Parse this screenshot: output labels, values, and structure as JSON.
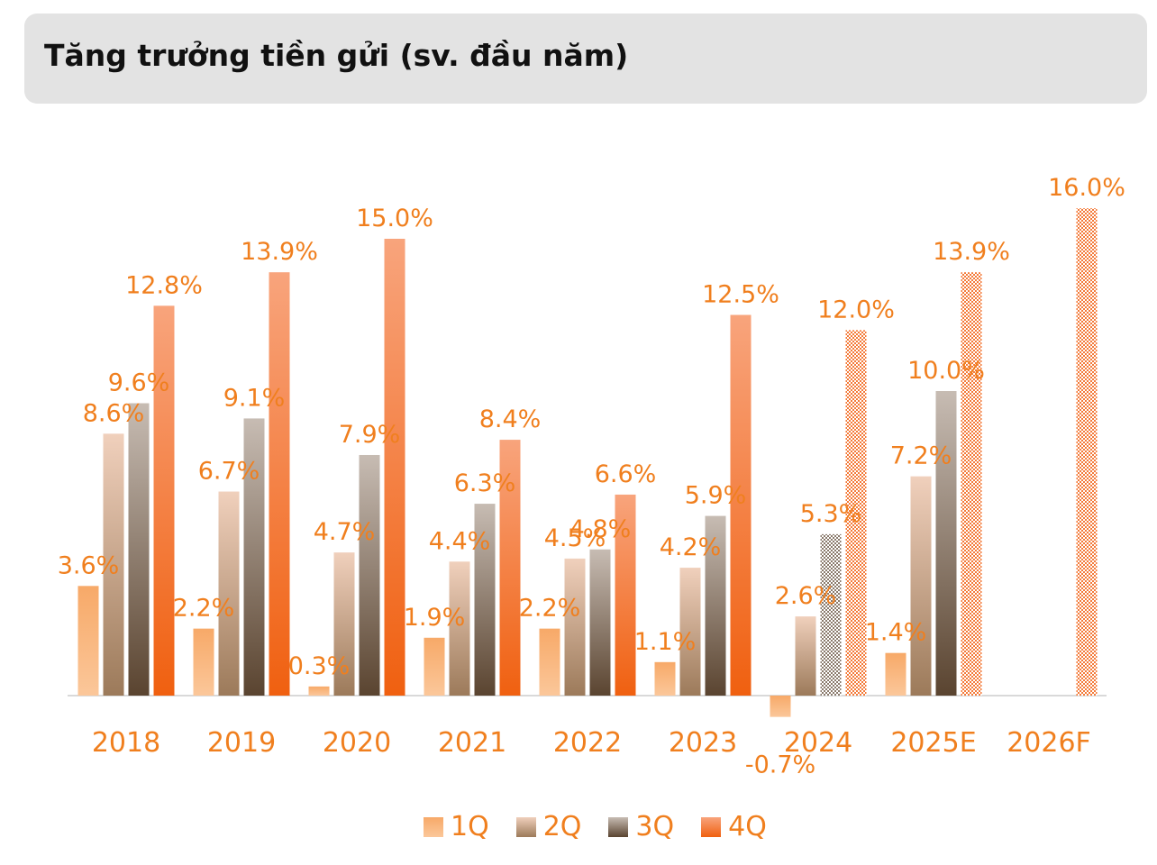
{
  "header": {
    "title": "Tăng trưởng tiền gửi (sv. đầu năm)"
  },
  "colors": {
    "accent": "#f07f1e",
    "q1": "#f4a05a",
    "q2": "#c9a283",
    "q3": "#6b5540",
    "q4": "#f47a38",
    "axis": "#d9d9d9"
  },
  "chart_data": {
    "type": "bar",
    "title": "Tăng trưởng tiền gửi (sv. đầu năm)",
    "categories": [
      "2018",
      "2019",
      "2020",
      "2021",
      "2022",
      "2023",
      "2024",
      "2025E",
      "2026F"
    ],
    "series": [
      {
        "name": "1Q",
        "values": [
          3.6,
          2.2,
          0.3,
          1.9,
          2.2,
          1.1,
          -0.7,
          1.4,
          null
        ],
        "labels": [
          "3.6%",
          "2.2%",
          "0.3%",
          "1.9%",
          "2.2%",
          "1.1%",
          "-0.7%",
          "1.4%",
          null
        ]
      },
      {
        "name": "2Q",
        "values": [
          8.6,
          6.7,
          4.7,
          4.4,
          4.5,
          4.2,
          2.6,
          7.2,
          null
        ],
        "labels": [
          "8.6%",
          "6.7%",
          "4.7%",
          "4.4%",
          "4.5%",
          "4.2%",
          "2.6%",
          "7.2%",
          null
        ]
      },
      {
        "name": "3Q",
        "values": [
          9.6,
          9.1,
          7.9,
          6.3,
          4.8,
          5.9,
          5.3,
          10.0,
          null
        ],
        "labels": [
          "9.6%",
          "9.1%",
          "7.9%",
          "6.3%",
          "4.8%",
          "5.9%",
          "5.3%",
          "10.0%",
          null
        ]
      },
      {
        "name": "4Q",
        "values": [
          12.8,
          13.9,
          15.0,
          8.4,
          6.6,
          12.5,
          12.0,
          13.9,
          16.0
        ],
        "labels": [
          "12.8%",
          "13.9%",
          "15.0%",
          "8.4%",
          "6.6%",
          "12.5%",
          "12.0%",
          "13.9%",
          "16.0%"
        ]
      }
    ],
    "forecast": [
      [
        false,
        false,
        false,
        false,
        false,
        false,
        false,
        false,
        false
      ],
      [
        false,
        false,
        false,
        false,
        false,
        false,
        false,
        false,
        false
      ],
      [
        false,
        false,
        false,
        false,
        false,
        false,
        true,
        false,
        false
      ],
      [
        false,
        false,
        false,
        false,
        false,
        false,
        true,
        true,
        true
      ]
    ],
    "xlabel": "",
    "ylabel": "",
    "ylim": [
      -1,
      17
    ],
    "legend": "bottom",
    "grid": false
  }
}
